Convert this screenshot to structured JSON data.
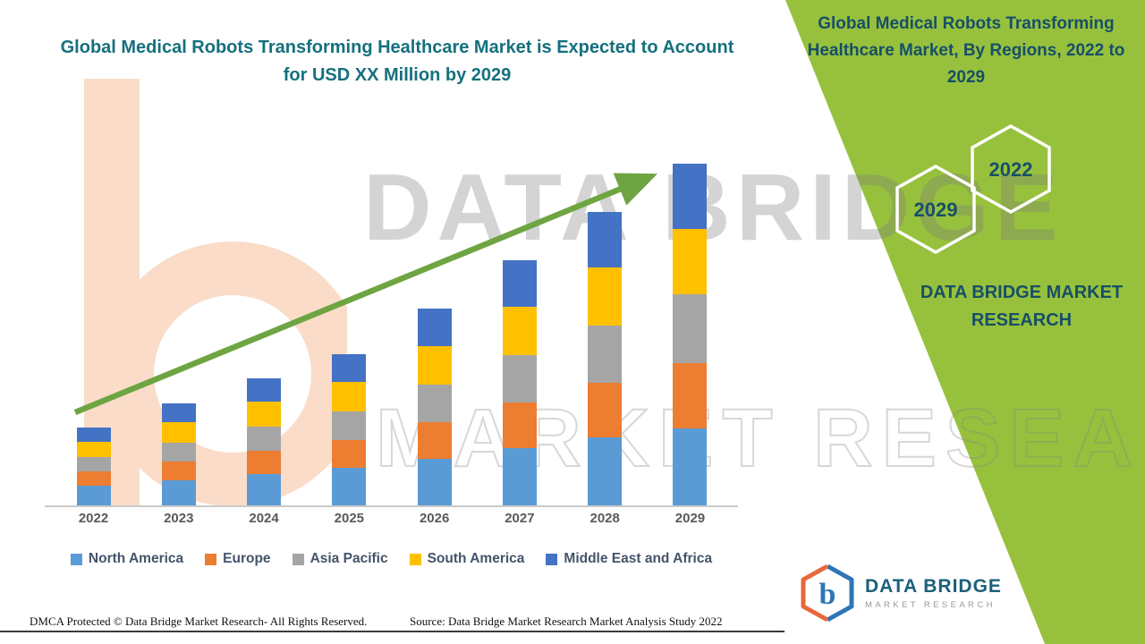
{
  "header": {
    "left_title": "Global Medical Robots Transforming Healthcare Market is Expected to Account for USD XX Million by 2029",
    "right_title": "Global Medical Robots Transforming Healthcare Market, By Regions, 2022 to 2029"
  },
  "side_panel": {
    "hexagon_year_back": "2022",
    "hexagon_year_front": "2029",
    "brand_text": "DATA BRIDGE MARKET RESEARCH",
    "panel_color": "#97C13D",
    "hexagon_outline_color": "#FFFFFF",
    "text_color": "#174F66"
  },
  "watermark": {
    "line1": "DATA BRIDGE",
    "line2": "MARKET RESEARCH"
  },
  "chart_data": {
    "type": "bar",
    "stacked": true,
    "title": "Global Medical Robots Transforming Healthcare Market, By Regions, 2022 to 2029",
    "categories": [
      "2022",
      "2023",
      "2024",
      "2025",
      "2026",
      "2027",
      "2028",
      "2029"
    ],
    "series": [
      {
        "name": "North America",
        "color": "#5B9BD5",
        "values": [
          22,
          28,
          35,
          42,
          52,
          64,
          76,
          86
        ]
      },
      {
        "name": "Europe",
        "color": "#ED7D31",
        "values": [
          16,
          21,
          26,
          31,
          41,
          51,
          61,
          73
        ]
      },
      {
        "name": "Asia Pacific",
        "color": "#A5A5A5",
        "values": [
          16,
          21,
          27,
          32,
          42,
          53,
          64,
          77
        ]
      },
      {
        "name": "South America",
        "color": "#FFC000",
        "values": [
          17,
          23,
          28,
          33,
          43,
          54,
          65,
          73
        ]
      },
      {
        "name": "Middle East and Africa",
        "color": "#4472C4",
        "values": [
          16,
          21,
          26,
          31,
          42,
          52,
          62,
          73
        ]
      }
    ],
    "totals": [
      87,
      114,
      142,
      169,
      220,
      274,
      328,
      382
    ],
    "xlabel": "",
    "ylabel": "",
    "y_axis_labels_visible": false,
    "value_note": "y-axis unlabeled on chart; values are relative units estimated from bar heights",
    "legend_position": "bottom",
    "grid": false,
    "trend_arrow": true,
    "trend_arrow_color": "#6EA542"
  },
  "footer": {
    "dmca": "DMCA Protected © Data Bridge Market Research- All Rights Reserved.",
    "source": "Source: Data Bridge Market Research Market Analysis Study 2022"
  },
  "logo": {
    "title": "DATA BRIDGE",
    "subtitle": "MARKET RESEARCH"
  },
  "colors": {
    "left_title": "#15707E",
    "right_title": "#174F66",
    "panel_green": "#97C13D",
    "arrow_green": "#6EA542",
    "axis_labels": "#595959",
    "legend_text": "#44546A"
  }
}
